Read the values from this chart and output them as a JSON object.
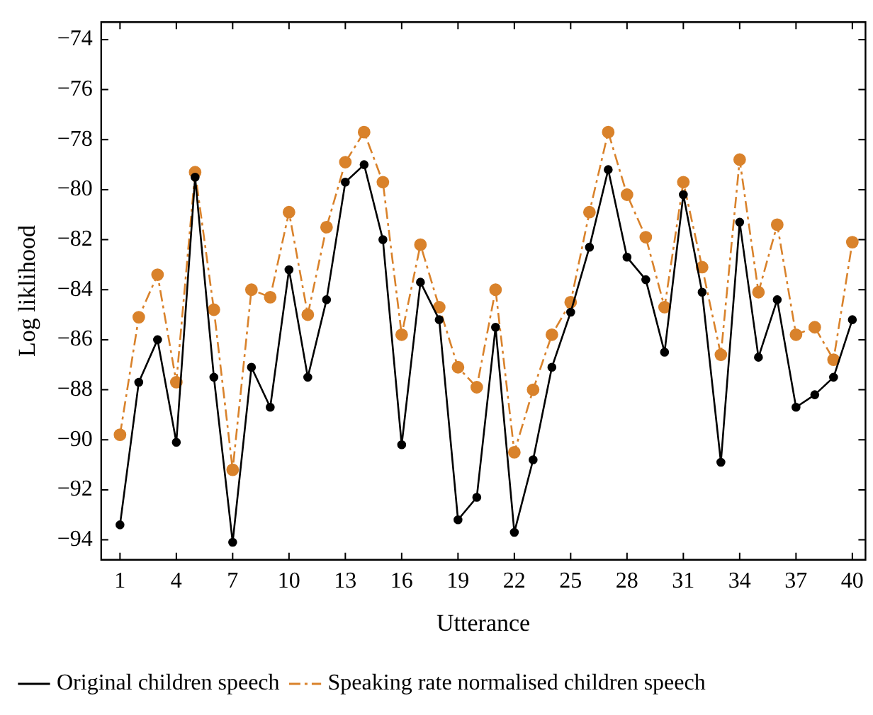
{
  "chart_data": {
    "type": "line",
    "xlabel": "Utterance",
    "ylabel": "Log liklihood",
    "x": [
      1,
      2,
      3,
      4,
      5,
      6,
      7,
      8,
      9,
      10,
      11,
      12,
      13,
      14,
      15,
      16,
      17,
      18,
      19,
      20,
      21,
      22,
      23,
      24,
      25,
      26,
      27,
      28,
      29,
      30,
      31,
      32,
      33,
      34,
      35,
      36,
      37,
      38,
      39,
      40
    ],
    "series": [
      {
        "name": "Original children speech",
        "color": "#000000",
        "line_style": "solid",
        "values": [
          -93.4,
          -87.7,
          -86.0,
          -90.1,
          -79.5,
          -87.5,
          -94.1,
          -87.1,
          -88.7,
          -83.2,
          -87.5,
          -84.4,
          -79.7,
          -79.0,
          -82.0,
          -90.2,
          -83.7,
          -85.2,
          -93.2,
          -92.3,
          -85.5,
          -93.7,
          -90.8,
          -87.1,
          -84.9,
          -82.3,
          -79.2,
          -82.7,
          -83.6,
          -86.5,
          -80.2,
          -84.1,
          -90.9,
          -81.3,
          -86.7,
          -84.4,
          -88.7,
          -88.2,
          -87.5,
          -85.2
        ]
      },
      {
        "name": "Speaking rate normalised children speech",
        "color": "#d9822b",
        "line_style": "dashed",
        "values": [
          -89.8,
          -85.1,
          -83.4,
          -87.7,
          -79.3,
          -84.8,
          -91.2,
          -84.0,
          -84.3,
          -80.9,
          -85.0,
          -81.5,
          -78.9,
          -77.7,
          -79.7,
          -85.8,
          -82.2,
          -84.7,
          -87.1,
          -87.9,
          -84.0,
          -90.5,
          -88.0,
          -85.8,
          -84.5,
          -80.9,
          -77.7,
          -80.2,
          -81.9,
          -84.7,
          -79.7,
          -83.1,
          -86.6,
          -78.8,
          -84.1,
          -81.4,
          -85.8,
          -85.5,
          -86.8,
          -82.1
        ]
      }
    ],
    "xlim": [
      0,
      40.7
    ],
    "xticks": [
      1,
      4,
      7,
      10,
      13,
      16,
      19,
      22,
      25,
      28,
      31,
      34,
      37,
      40
    ],
    "ylim": [
      -94.8,
      -73.3
    ],
    "yticks": [
      -94,
      -92,
      -90,
      -88,
      -86,
      -84,
      -82,
      -80,
      -78,
      -76,
      -74
    ],
    "grid": false,
    "legend": "bottom",
    "marker": "circle"
  }
}
